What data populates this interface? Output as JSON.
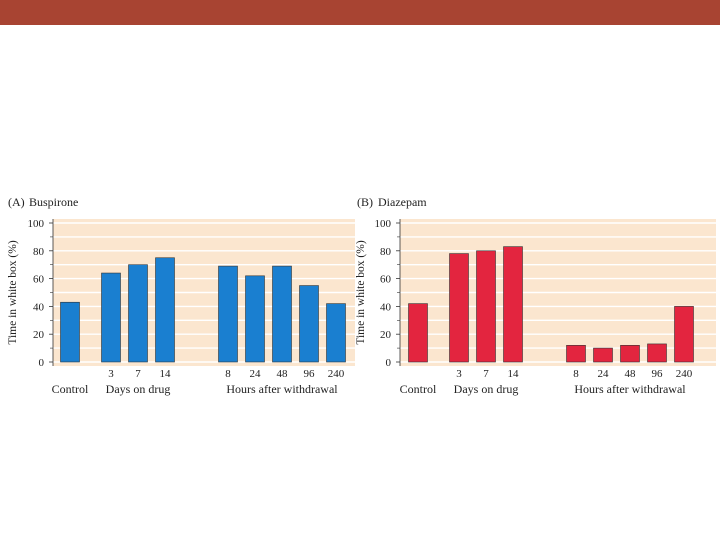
{
  "colors": {
    "topbar": "#a84432",
    "plot_bg": "#fbe6cf",
    "grid": "#ffffff"
  },
  "chart_data": [
    {
      "type": "bar",
      "panel_label": "(A)",
      "title": "Buspirone",
      "ylabel": "Time in white box (%)",
      "ylim": [
        0,
        100
      ],
      "yticks": [
        "0",
        "20",
        "40",
        "60",
        "80",
        "100"
      ],
      "bar_color": "#1a7fd0",
      "categories": [
        "Control",
        "3",
        "7",
        "14",
        "8",
        "24",
        "48",
        "96",
        "240"
      ],
      "values": [
        43,
        64,
        70,
        75,
        69,
        62,
        69,
        55,
        42
      ],
      "group_labels": [
        "Control",
        "Days on drug",
        "Hours after withdrawal"
      ]
    },
    {
      "type": "bar",
      "panel_label": "(B)",
      "title": "Diazepam",
      "ylabel": "Time in white box (%)",
      "ylim": [
        0,
        100
      ],
      "yticks": [
        "0",
        "20",
        "40",
        "60",
        "80",
        "100"
      ],
      "bar_color": "#e3253f",
      "categories": [
        "Control",
        "3",
        "7",
        "14",
        "8",
        "24",
        "48",
        "96",
        "240"
      ],
      "values": [
        42,
        78,
        80,
        83,
        12,
        10,
        12,
        13,
        40
      ],
      "group_labels": [
        "Control",
        "Days on drug",
        "Hours after withdrawal"
      ]
    }
  ]
}
